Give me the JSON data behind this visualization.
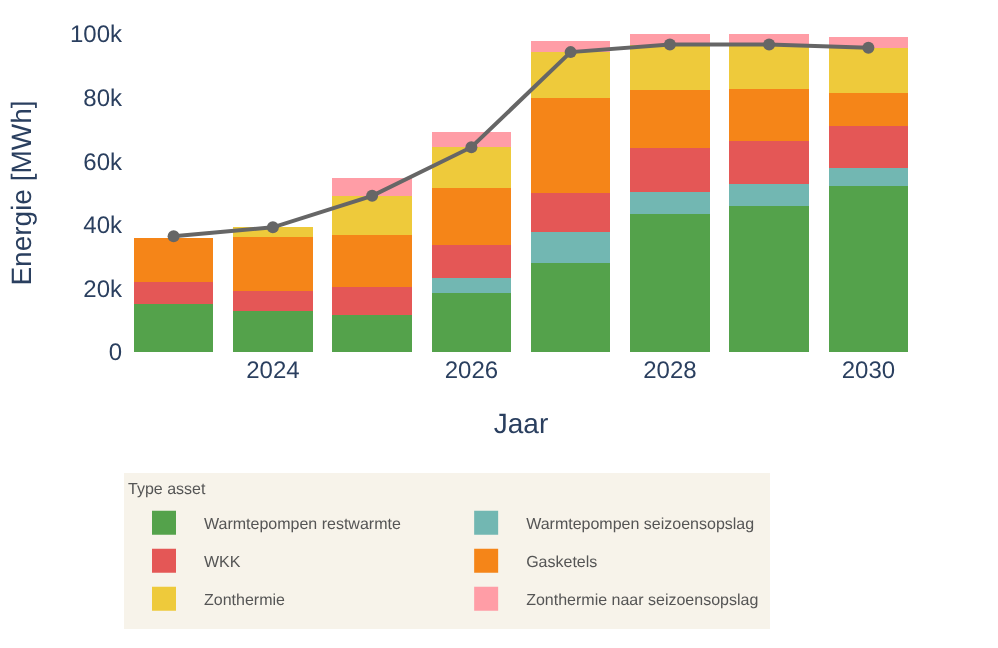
{
  "chart_data": {
    "type": "bar",
    "stacked": true,
    "xlabel": "Jaar",
    "ylabel": "Energie [MWh]",
    "legend_title": "Type asset",
    "legend": "bottom",
    "categories": [
      null,
      "2024",
      null,
      "2026",
      null,
      "2028",
      null,
      "2030"
    ],
    "ylim": [
      0,
      100000
    ],
    "yticks": [
      {
        "value": 0,
        "label": "0"
      },
      {
        "value": 20000,
        "label": "20k"
      },
      {
        "value": 40000,
        "label": "40k"
      },
      {
        "value": 60000,
        "label": "60k"
      },
      {
        "value": 80000,
        "label": "80k"
      },
      {
        "value": 100000,
        "label": "100k"
      }
    ],
    "series": [
      {
        "name": "Warmtepompen restwarmte",
        "color": "#54a24b",
        "values": [
          15000,
          13000,
          11700,
          18600,
          28000,
          43500,
          45900,
          52100
        ]
      },
      {
        "name": "Warmtepompen seizoensopslag",
        "color": "#72b7b2",
        "values": [
          0,
          0,
          0,
          4800,
          9800,
          6800,
          6800,
          5800
        ]
      },
      {
        "name": "WKK",
        "color": "#e45756",
        "values": [
          7000,
          6300,
          8600,
          10300,
          12200,
          13800,
          13500,
          13100
        ]
      },
      {
        "name": "Gasketels",
        "color": "#f58518",
        "values": [
          14000,
          17000,
          16600,
          17800,
          29900,
          18400,
          16400,
          10600
        ]
      },
      {
        "name": "Zonthermie",
        "color": "#eeca3b",
        "values": [
          0,
          3000,
          12200,
          12900,
          14300,
          14200,
          14100,
          14100
        ]
      },
      {
        "name": "Zonthermie naar seizoensopslag",
        "color": "#ff9da6",
        "values": [
          0,
          0,
          5500,
          4800,
          3600,
          3400,
          3400,
          3400
        ]
      },
      {
        "type": "line",
        "color": "#666666",
        "marker": "circle",
        "values": [
          36400,
          39200,
          49100,
          64400,
          94300,
          96700,
          96700,
          95700
        ]
      }
    ]
  }
}
